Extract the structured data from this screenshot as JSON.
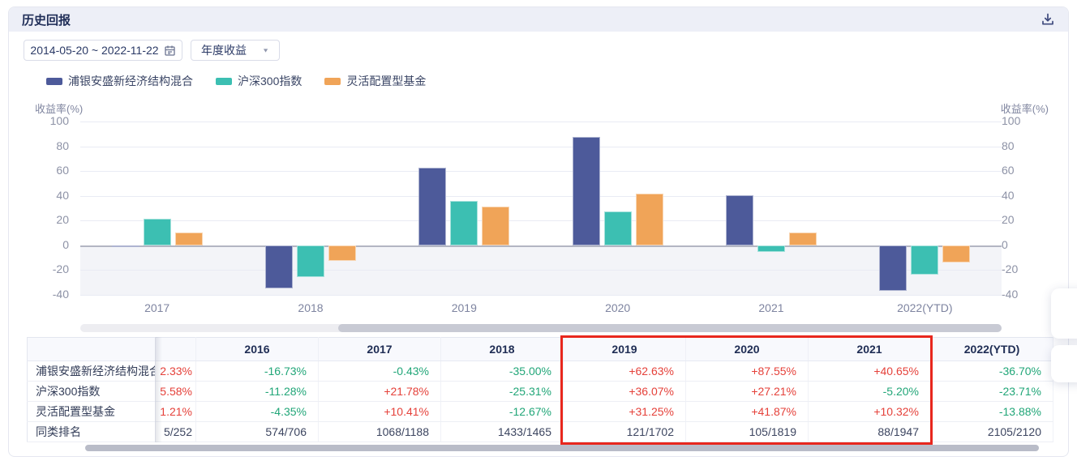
{
  "panel": {
    "title": "历史回报"
  },
  "toolbar": {
    "date_range": "2014-05-20 ~ 2022-11-22",
    "period_select": "年度收益"
  },
  "chart_data": {
    "type": "bar",
    "title": "",
    "categories": [
      "2017",
      "2018",
      "2019",
      "2020",
      "2021",
      "2022(YTD)"
    ],
    "series": [
      {
        "name": "浦银安盛新经济结构混合",
        "color": "#4d5a9a",
        "values": [
          -0.43,
          -35.0,
          62.63,
          87.55,
          40.65,
          -36.7
        ]
      },
      {
        "name": "沪深300指数",
        "color": "#3cbfb2",
        "values": [
          21.78,
          -25.31,
          36.07,
          27.21,
          -5.2,
          -23.71
        ]
      },
      {
        "name": "灵活配置型基金",
        "color": "#f0a458",
        "values": [
          10.41,
          -12.67,
          31.25,
          41.87,
          10.32,
          -13.88
        ]
      }
    ],
    "ylabel_left": "收益率(%)",
    "ylabel_right": "收益率(%)",
    "yticks": [
      100,
      80,
      60,
      40,
      20,
      0,
      -20,
      -40
    ],
    "ylim": [
      -40,
      100
    ],
    "grid": true,
    "legend_position": "top-left",
    "data_zoom": {
      "selected_start_pct": 28,
      "selected_end_pct": 100
    }
  },
  "table": {
    "partial_column_values": [
      "2.33%",
      "5.58%",
      "1.21%",
      "5/252"
    ],
    "years": [
      "2016",
      "2017",
      "2018",
      "2019",
      "2020",
      "2021",
      "2022(YTD)"
    ],
    "rows": [
      {
        "label": "浦银安盛新经济结构混合",
        "cells": [
          "-16.73%",
          "-0.43%",
          "-35.00%",
          "+62.63%",
          "+87.55%",
          "+40.65%",
          "-36.70%"
        ]
      },
      {
        "label": "沪深300指数",
        "cells": [
          "-11.28%",
          "+21.78%",
          "-25.31%",
          "+36.07%",
          "+27.21%",
          "-5.20%",
          "-23.71%"
        ]
      },
      {
        "label": "灵活配置型基金",
        "cells": [
          "-4.35%",
          "+10.41%",
          "-12.67%",
          "+31.25%",
          "+41.87%",
          "+10.32%",
          "-13.88%"
        ]
      },
      {
        "label": "同类排名",
        "cells": [
          "574/706",
          "1068/1188",
          "1433/1465",
          "121/1702",
          "105/1819",
          "88/1947",
          "2105/2120"
        ]
      }
    ],
    "highlight": {
      "from_year": "2019",
      "to_year": "2021",
      "color": "#e8271d"
    }
  },
  "colors": {
    "positive_text": "#e5413a",
    "negative_text": "#21a678",
    "titlebar_bg": "#edeff7",
    "highlight_red": "#e8271d"
  }
}
